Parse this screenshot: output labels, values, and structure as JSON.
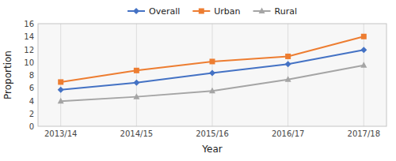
{
  "chart_data": {
    "type": "line",
    "categories": [
      "2013/14",
      "2014/15",
      "2015/16",
      "2016/17",
      "2017/18"
    ],
    "series": [
      {
        "name": "Overall",
        "color": "#4472C4",
        "marker": "diamond",
        "values": [
          5.7,
          6.8,
          8.3,
          9.7,
          11.9
        ]
      },
      {
        "name": "Urban",
        "color": "#ED7D31",
        "marker": "square",
        "values": [
          6.9,
          8.7,
          10.1,
          10.9,
          14.0
        ]
      },
      {
        "name": "Rural",
        "color": "#A5A5A5",
        "marker": "triangle",
        "values": [
          3.9,
          4.6,
          5.5,
          7.3,
          9.5
        ]
      }
    ],
    "x_label": "Year",
    "y_label": "Proportion",
    "ylim": [
      0,
      16
    ],
    "yticks": [
      0,
      2,
      4,
      6,
      8,
      10,
      12,
      14,
      16
    ],
    "grid": true,
    "legend": "top"
  }
}
